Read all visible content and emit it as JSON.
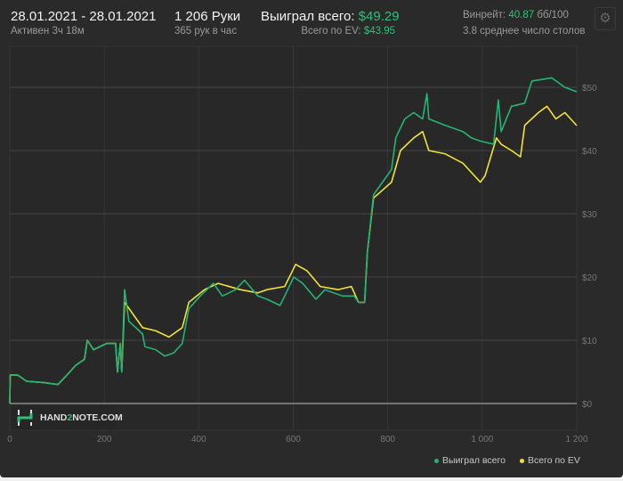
{
  "header": {
    "date_range": "28.01.2021 - 28.01.2021",
    "active": "Активен 3ч 18м",
    "hands": "1 206 Руки",
    "hands_per_hour": "365 рук в час",
    "won_label": "Выиграл всего:",
    "won_value": "$49.29",
    "ev_label": "Всего по EV:",
    "ev_value": "$43.95",
    "winrate_label": "Винрейт:",
    "winrate_value": "40.87",
    "winrate_unit": "бб/100",
    "avg_tables": "3.8 среднее число столов",
    "settings_icon": "gear-icon"
  },
  "watermark": {
    "pre": "HAND",
    "mid": "2",
    "post": "NOTE.COM"
  },
  "colors": {
    "won": "#22b573",
    "ev": "#f2e233",
    "accent": "#2fbf7a"
  },
  "chart_data": {
    "type": "line",
    "xlim": [
      0,
      1200
    ],
    "ylim": [
      -4,
      57
    ],
    "xticks": [
      "0",
      "200",
      "400",
      "600",
      "800",
      "1 000",
      "1 200"
    ],
    "xtick_values": [
      0,
      200,
      400,
      600,
      800,
      1000,
      1200
    ],
    "yticks": [
      "$0",
      "$10",
      "$20",
      "$30",
      "$40",
      "$50"
    ],
    "ytick_values": [
      0,
      10,
      20,
      30,
      40,
      50
    ],
    "grid": true,
    "legend": "bottom-right",
    "series": [
      {
        "name": "Выиграл всего",
        "x": [
          0,
          1,
          17,
          36,
          73,
          102,
          121,
          139,
          158,
          164,
          177,
          205,
          224,
          228,
          234,
          237,
          243,
          252,
          281,
          286,
          309,
          328,
          347,
          365,
          379,
          403,
          431,
          450,
          478,
          497,
          525,
          544,
          572,
          582,
          601,
          620,
          648,
          667,
          704,
          729,
          738,
          751,
          757,
          770,
          789,
          808,
          817,
          836,
          855,
          874,
          883,
          887,
          921,
          959,
          977,
          996,
          1024,
          1034,
          1040,
          1062,
          1090,
          1105,
          1147,
          1175,
          1200
        ],
        "y": [
          0,
          4.5,
          4.5,
          3.5,
          3.3,
          3,
          4.5,
          6,
          7,
          10,
          8.5,
          9.5,
          9.5,
          5,
          9.5,
          5,
          18,
          13,
          11,
          9,
          8.5,
          7.5,
          8,
          9.5,
          15,
          17,
          19,
          17,
          18,
          19.5,
          17,
          16.5,
          15.5,
          17,
          20,
          19,
          16.5,
          18,
          17,
          17,
          16,
          16,
          24,
          33,
          35,
          37,
          42,
          45,
          46,
          45,
          49,
          45,
          44,
          43,
          42,
          41.5,
          41,
          48,
          43,
          47,
          47.5,
          51,
          51.5,
          50,
          49.29
        ]
      },
      {
        "name": "Всего по EV",
        "x": [
          0,
          1,
          17,
          36,
          73,
          102,
          121,
          139,
          158,
          164,
          177,
          205,
          224,
          228,
          234,
          237,
          243,
          262,
          281,
          309,
          337,
          365,
          379,
          412,
          441,
          488,
          525,
          544,
          582,
          605,
          629,
          657,
          695,
          723,
          738,
          751,
          757,
          770,
          808,
          827,
          855,
          874,
          887,
          921,
          959,
          996,
          1006,
          1030,
          1040,
          1062,
          1081,
          1090,
          1119,
          1137,
          1156,
          1175,
          1200
        ],
        "y": [
          0,
          4.5,
          4.5,
          3.5,
          3.3,
          3,
          4.5,
          6,
          7,
          10,
          8.5,
          9.5,
          9.5,
          5,
          9.5,
          5,
          16,
          14,
          12,
          11.5,
          10.5,
          12,
          16,
          18,
          19,
          18,
          17.5,
          18,
          18.5,
          22,
          21,
          18.5,
          18,
          18.5,
          16,
          16,
          24,
          32.5,
          35,
          40,
          42,
          43,
          40,
          39.5,
          38,
          35,
          36,
          42,
          41,
          40,
          39,
          44,
          46,
          47,
          45,
          46,
          43.95
        ]
      }
    ]
  }
}
